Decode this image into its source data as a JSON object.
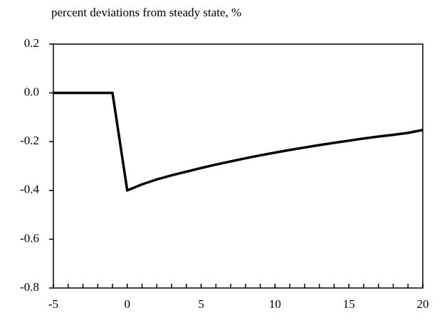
{
  "chart_data": {
    "type": "line",
    "title": "percent deviations from steady state, %",
    "x": [
      -5,
      -4,
      -3,
      -2,
      -1,
      0,
      1,
      2,
      3,
      4,
      5,
      6,
      7,
      8,
      9,
      10,
      11,
      12,
      13,
      14,
      15,
      16,
      17,
      18,
      19,
      20
    ],
    "series": [
      {
        "color": "#000000",
        "values": [
          0,
          0,
          0,
          0,
          0,
          -0.4,
          -0.375,
          -0.355,
          -0.338,
          -0.323,
          -0.308,
          -0.294,
          -0.281,
          -0.268,
          -0.256,
          -0.245,
          -0.234,
          -0.224,
          -0.214,
          -0.205,
          -0.196,
          -0.187,
          -0.179,
          -0.172,
          -0.164,
          -0.152
        ]
      }
    ],
    "xlim": [
      -5,
      20
    ],
    "xticks": [
      -5,
      0,
      5,
      10,
      15,
      20
    ],
    "ylim": [
      -0.8,
      0.2
    ],
    "yticks": [
      {
        "value": -0.8,
        "label": "-0.8"
      },
      -0.6,
      -0.4,
      -0.2,
      {
        "value": 0,
        "label": "0.0"
      },
      0.2
    ],
    "grid": false
  }
}
